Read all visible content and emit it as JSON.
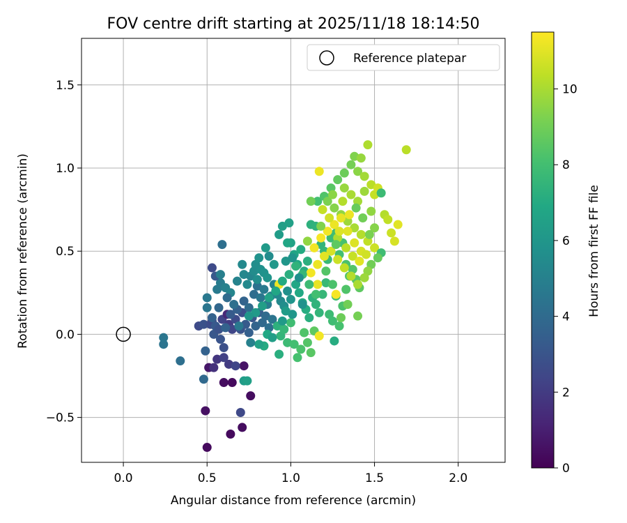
{
  "chart_data": {
    "type": "scatter",
    "title": "FOV centre drift starting at 2025/11/18 18:14:50",
    "xlabel": "Angular distance from reference (arcmin)",
    "ylabel": "Rotation from reference (arcmin)",
    "xlim": [
      -0.25,
      2.28
    ],
    "ylim": [
      -0.77,
      1.78
    ],
    "xticks": [
      0.0,
      0.5,
      1.0,
      1.5,
      2.0
    ],
    "xtick_labels": [
      "0.0",
      "0.5",
      "1.0",
      "1.5",
      "2.0"
    ],
    "yticks": [
      -0.5,
      0.0,
      0.5,
      1.0,
      1.5
    ],
    "ytick_labels": [
      "−0.5",
      "0.0",
      "0.5",
      "1.0",
      "1.5"
    ],
    "grid": true,
    "legend": {
      "position": "top-right",
      "entries": [
        "Reference platepar"
      ]
    },
    "reference_point": {
      "x": 0.0,
      "y": 0.0,
      "label": "Reference platepar"
    },
    "colorbar": {
      "label": "Hours from first FF file",
      "range": [
        0,
        11.5
      ],
      "ticks": [
        0,
        2,
        4,
        6,
        8,
        10
      ],
      "tick_labels": [
        "0",
        "2",
        "4",
        "6",
        "8",
        "10"
      ],
      "colormap": "viridis"
    },
    "points": [
      [
        0.5,
        -0.68,
        0.3
      ],
      [
        0.64,
        -0.6,
        0.3
      ],
      [
        0.71,
        -0.56,
        0.4
      ],
      [
        0.49,
        -0.46,
        0.5
      ],
      [
        0.76,
        -0.37,
        0.4
      ],
      [
        0.6,
        -0.29,
        0.4
      ],
      [
        0.65,
        -0.29,
        0.3
      ],
      [
        0.51,
        -0.2,
        0.7
      ],
      [
        0.72,
        -0.19,
        0.6
      ],
      [
        0.7,
        -0.47,
        2.5
      ],
      [
        0.54,
        -0.2,
        1.6
      ],
      [
        0.56,
        -0.15,
        1.8
      ],
      [
        0.63,
        -0.18,
        2.0
      ],
      [
        0.6,
        -0.14,
        2.2
      ],
      [
        0.67,
        -0.19,
        2.4
      ],
      [
        0.6,
        -0.08,
        2.8
      ],
      [
        0.58,
        -0.03,
        3.0
      ],
      [
        0.54,
        0.0,
        3.1
      ],
      [
        0.49,
        -0.1,
        3.6
      ],
      [
        0.48,
        -0.27,
        3.9
      ],
      [
        0.34,
        -0.16,
        4.2
      ],
      [
        0.24,
        -0.06,
        4.4
      ],
      [
        0.24,
        -0.02,
        4.5
      ],
      [
        0.45,
        0.05,
        2.6
      ],
      [
        0.48,
        0.06,
        2.9
      ],
      [
        0.52,
        0.06,
        2.7
      ],
      [
        0.53,
        0.08,
        2.5
      ],
      [
        0.55,
        0.05,
        3.2
      ],
      [
        0.57,
        0.03,
        2.9
      ],
      [
        0.59,
        0.09,
        2.3
      ],
      [
        0.62,
        0.12,
        1.3
      ],
      [
        0.63,
        0.06,
        2.0
      ],
      [
        0.65,
        0.03,
        2.4
      ],
      [
        0.67,
        0.09,
        2.6
      ],
      [
        0.7,
        0.03,
        3.0
      ],
      [
        0.71,
        0.13,
        2.8
      ],
      [
        0.73,
        0.06,
        3.3
      ],
      [
        0.75,
        0.01,
        3.5
      ],
      [
        0.77,
        0.1,
        3.1
      ],
      [
        0.79,
        0.05,
        3.7
      ],
      [
        0.81,
        0.13,
        3.4
      ],
      [
        0.83,
        0.07,
        3.9
      ],
      [
        0.85,
        0.11,
        4.0
      ],
      [
        0.87,
        0.04,
        4.2
      ],
      [
        0.89,
        0.09,
        4.4
      ],
      [
        0.61,
        0.04,
        3.6
      ],
      [
        0.64,
        0.12,
        3.3
      ],
      [
        0.68,
        0.15,
        3.5
      ],
      [
        0.72,
        0.2,
        3.7
      ],
      [
        0.75,
        0.16,
        4.0
      ],
      [
        0.78,
        0.24,
        4.1
      ],
      [
        0.8,
        0.29,
        4.3
      ],
      [
        0.82,
        0.22,
        4.5
      ],
      [
        0.84,
        0.27,
        4.7
      ],
      [
        0.86,
        0.18,
        4.8
      ],
      [
        0.88,
        0.23,
        5.0
      ],
      [
        0.9,
        0.3,
        5.1
      ],
      [
        0.92,
        0.24,
        5.3
      ],
      [
        0.94,
        0.2,
        5.4
      ],
      [
        0.96,
        0.17,
        5.6
      ],
      [
        0.98,
        0.26,
        5.7
      ],
      [
        1.0,
        0.21,
        5.9
      ],
      [
        0.5,
        0.16,
        4.5
      ],
      [
        0.5,
        0.22,
        4.6
      ],
      [
        0.56,
        0.27,
        4.7
      ],
      [
        0.58,
        0.31,
        4.8
      ],
      [
        0.55,
        0.35,
        3.2
      ],
      [
        0.53,
        0.4,
        2.6
      ],
      [
        0.58,
        0.36,
        4.9
      ],
      [
        0.59,
        0.54,
        4.2
      ],
      [
        0.61,
        0.28,
        5.0
      ],
      [
        0.64,
        0.25,
        5.2
      ],
      [
        0.68,
        0.32,
        5.1
      ],
      [
        0.72,
        0.36,
        5.3
      ],
      [
        0.74,
        0.3,
        5.4
      ],
      [
        0.76,
        0.35,
        5.2
      ],
      [
        0.78,
        0.38,
        5.5
      ],
      [
        0.8,
        0.33,
        5.6
      ],
      [
        0.82,
        0.39,
        5.7
      ],
      [
        0.84,
        0.37,
        5.8
      ],
      [
        0.71,
        0.42,
        5.4
      ],
      [
        0.79,
        0.42,
        5.6
      ],
      [
        0.81,
        0.46,
        5.8
      ],
      [
        0.86,
        0.34,
        5.9
      ],
      [
        0.9,
        0.42,
        6.1
      ],
      [
        0.93,
        0.6,
        6.3
      ],
      [
        0.95,
        0.65,
        6.4
      ],
      [
        0.99,
        0.67,
        6.5
      ],
      [
        1.0,
        0.55,
        6.6
      ],
      [
        1.02,
        0.48,
        6.7
      ],
      [
        0.98,
        0.55,
        6.8
      ],
      [
        1.04,
        0.42,
        6.9
      ],
      [
        1.06,
        0.51,
        7.0
      ],
      [
        1.08,
        0.38,
        7.1
      ],
      [
        1.1,
        0.44,
        7.2
      ],
      [
        1.12,
        0.66,
        7.3
      ],
      [
        1.15,
        0.65,
        7.4
      ],
      [
        1.18,
        0.54,
        7.5
      ],
      [
        1.2,
        0.5,
        7.6
      ],
      [
        1.22,
        0.45,
        7.7
      ],
      [
        1.24,
        0.58,
        7.8
      ],
      [
        1.27,
        0.61,
        7.9
      ],
      [
        1.29,
        0.48,
        8.0
      ],
      [
        1.31,
        0.55,
        8.1
      ],
      [
        1.33,
        0.42,
        8.2
      ],
      [
        1.35,
        0.35,
        8.3
      ],
      [
        1.37,
        0.39,
        8.4
      ],
      [
        1.39,
        0.33,
        8.5
      ],
      [
        1.41,
        0.28,
        8.6
      ],
      [
        1.03,
        0.3,
        6.8
      ],
      [
        1.05,
        0.25,
        6.9
      ],
      [
        1.07,
        0.19,
        7.0
      ],
      [
        1.09,
        0.15,
        7.1
      ],
      [
        1.11,
        0.1,
        7.2
      ],
      [
        1.13,
        0.22,
        7.3
      ],
      [
        1.15,
        0.18,
        7.4
      ],
      [
        1.17,
        0.13,
        7.5
      ],
      [
        1.19,
        0.24,
        7.6
      ],
      [
        1.21,
        0.31,
        7.7
      ],
      [
        1.23,
        0.12,
        7.8
      ],
      [
        1.25,
        0.08,
        7.9
      ],
      [
        1.27,
        0.23,
        8.0
      ],
      [
        1.29,
        0.05,
        8.1
      ],
      [
        1.31,
        0.17,
        8.2
      ],
      [
        1.33,
        0.27,
        8.3
      ],
      [
        0.92,
        0.05,
        7.3
      ],
      [
        0.94,
        -0.01,
        7.5
      ],
      [
        0.96,
        0.03,
        7.6
      ],
      [
        0.98,
        -0.05,
        7.8
      ],
      [
        1.0,
        0.07,
        7.9
      ],
      [
        1.02,
        -0.06,
        8.0
      ],
      [
        1.04,
        -0.14,
        8.1
      ],
      [
        1.06,
        -0.09,
        8.2
      ],
      [
        1.08,
        0.01,
        8.3
      ],
      [
        1.1,
        -0.05,
        8.4
      ],
      [
        1.12,
        -0.11,
        8.5
      ],
      [
        1.14,
        0.02,
        8.6
      ],
      [
        0.86,
        0.0,
        6.9
      ],
      [
        0.84,
        -0.07,
        7.0
      ],
      [
        0.93,
        -0.12,
        7.2
      ],
      [
        1.26,
        -0.04,
        7.1
      ],
      [
        1.3,
        0.1,
        8.9
      ],
      [
        1.34,
        0.18,
        9.0
      ],
      [
        1.4,
        0.11,
        9.1
      ],
      [
        0.81,
        -0.06,
        6.6
      ],
      [
        0.89,
        -0.02,
        6.4
      ],
      [
        0.95,
        0.08,
        6.2
      ],
      [
        1.01,
        0.12,
        6.0
      ],
      [
        1.07,
        0.18,
        5.8
      ],
      [
        0.97,
        0.14,
        6.3
      ],
      [
        1.16,
        0.8,
        8.0
      ],
      [
        1.2,
        0.83,
        8.3
      ],
      [
        1.24,
        0.88,
        8.5
      ],
      [
        1.28,
        0.93,
        8.7
      ],
      [
        1.32,
        0.97,
        8.9
      ],
      [
        1.36,
        1.02,
        9.1
      ],
      [
        1.38,
        1.07,
        9.3
      ],
      [
        1.4,
        0.98,
        9.5
      ],
      [
        1.42,
        1.06,
        9.7
      ],
      [
        1.44,
        0.95,
        9.9
      ],
      [
        1.46,
        1.14,
        10.1
      ],
      [
        1.48,
        0.9,
        10.3
      ],
      [
        1.5,
        0.84,
        10.5
      ],
      [
        1.52,
        0.88,
        10.7
      ],
      [
        1.54,
        0.85,
        7.8
      ],
      [
        1.56,
        0.72,
        10.2
      ],
      [
        1.58,
        0.69,
        10.4
      ],
      [
        1.6,
        0.61,
        10.6
      ],
      [
        1.62,
        0.56,
        10.8
      ],
      [
        1.64,
        0.66,
        11.0
      ],
      [
        1.69,
        1.11,
        10.3
      ],
      [
        1.22,
        0.8,
        9.2
      ],
      [
        1.26,
        0.76,
        9.4
      ],
      [
        1.3,
        0.72,
        9.6
      ],
      [
        1.34,
        0.68,
        9.8
      ],
      [
        1.38,
        0.64,
        10.0
      ],
      [
        1.42,
        0.6,
        10.2
      ],
      [
        1.46,
        0.56,
        10.4
      ],
      [
        1.5,
        0.52,
        10.6
      ],
      [
        1.54,
        0.49,
        7.9
      ],
      [
        1.52,
        0.46,
        8.8
      ],
      [
        1.48,
        0.42,
        9.0
      ],
      [
        1.46,
        0.38,
        9.6
      ],
      [
        1.44,
        0.34,
        9.8
      ],
      [
        1.4,
        0.3,
        10.0
      ],
      [
        1.36,
        0.35,
        10.2
      ],
      [
        1.32,
        0.4,
        10.4
      ],
      [
        1.28,
        0.45,
        10.6
      ],
      [
        1.24,
        0.5,
        10.8
      ],
      [
        1.2,
        0.47,
        11.0
      ],
      [
        1.16,
        0.42,
        11.2
      ],
      [
        1.12,
        0.37,
        11.3
      ],
      [
        1.18,
        0.58,
        11.4
      ],
      [
        1.22,
        0.62,
        11.3
      ],
      [
        1.26,
        0.66,
        11.2
      ],
      [
        1.3,
        0.7,
        11.1
      ],
      [
        1.34,
        0.62,
        11.0
      ],
      [
        1.38,
        0.55,
        10.9
      ],
      [
        1.42,
        0.5,
        10.8
      ],
      [
        1.45,
        0.48,
        10.7
      ],
      [
        1.17,
        0.98,
        11.2
      ],
      [
        1.27,
        0.24,
        11.4
      ],
      [
        1.16,
        0.3,
        11.1
      ],
      [
        1.17,
        -0.01,
        11.3
      ],
      [
        0.93,
        0.3,
        11.2
      ],
      [
        1.14,
        0.52,
        11.3
      ],
      [
        1.1,
        0.56,
        9.6
      ],
      [
        1.12,
        0.8,
        9.0
      ],
      [
        1.18,
        0.65,
        9.3
      ],
      [
        1.25,
        0.84,
        9.5
      ],
      [
        1.32,
        0.88,
        9.7
      ],
      [
        1.4,
        0.8,
        9.9
      ],
      [
        1.28,
        0.58,
        10.1
      ],
      [
        1.33,
        0.52,
        10.3
      ],
      [
        1.37,
        0.47,
        10.5
      ],
      [
        1.41,
        0.44,
        11.0
      ],
      [
        1.35,
        0.72,
        11.2
      ],
      [
        1.29,
        0.62,
        10.9
      ],
      [
        1.23,
        0.7,
        10.7
      ],
      [
        1.19,
        0.75,
        10.5
      ],
      [
        1.31,
        0.8,
        10.2
      ],
      [
        1.36,
        0.84,
        10.0
      ],
      [
        1.44,
        0.86,
        9.8
      ],
      [
        1.48,
        0.74,
        9.6
      ],
      [
        1.5,
        0.64,
        9.4
      ],
      [
        1.47,
        0.6,
        9.2
      ],
      [
        1.43,
        0.7,
        9.0
      ],
      [
        1.39,
        0.76,
        8.8
      ],
      [
        1.27,
        0.54,
        8.6
      ],
      [
        1.21,
        0.38,
        8.4
      ],
      [
        1.25,
        0.3,
        8.2
      ],
      [
        1.15,
        0.24,
        8.0
      ],
      [
        1.11,
        0.3,
        7.8
      ],
      [
        1.07,
        0.36,
        7.6
      ],
      [
        1.03,
        0.41,
        7.4
      ],
      [
        0.99,
        0.36,
        7.2
      ],
      [
        0.95,
        0.32,
        7.0
      ],
      [
        0.91,
        0.26,
        6.8
      ],
      [
        0.87,
        0.22,
        6.6
      ],
      [
        0.83,
        0.17,
        6.4
      ],
      [
        0.79,
        0.13,
        6.2
      ],
      [
        0.75,
        0.11,
        6.0
      ],
      [
        0.72,
        -0.28,
        6.3
      ],
      [
        0.74,
        -0.28,
        6.5
      ],
      [
        0.76,
        -0.05,
        5.0
      ],
      [
        0.69,
        0.05,
        4.6
      ],
      [
        0.66,
        0.18,
        4.2
      ],
      [
        0.62,
        0.22,
        4.0
      ],
      [
        0.57,
        0.16,
        3.8
      ],
      [
        0.53,
        0.1,
        3.6
      ],
      [
        0.97,
        0.44,
        6.0
      ],
      [
        1.01,
        0.46,
        5.9
      ],
      [
        1.05,
        0.34,
        5.7
      ],
      [
        0.87,
        0.47,
        5.5
      ],
      [
        0.85,
        0.52,
        6.2
      ]
    ]
  }
}
